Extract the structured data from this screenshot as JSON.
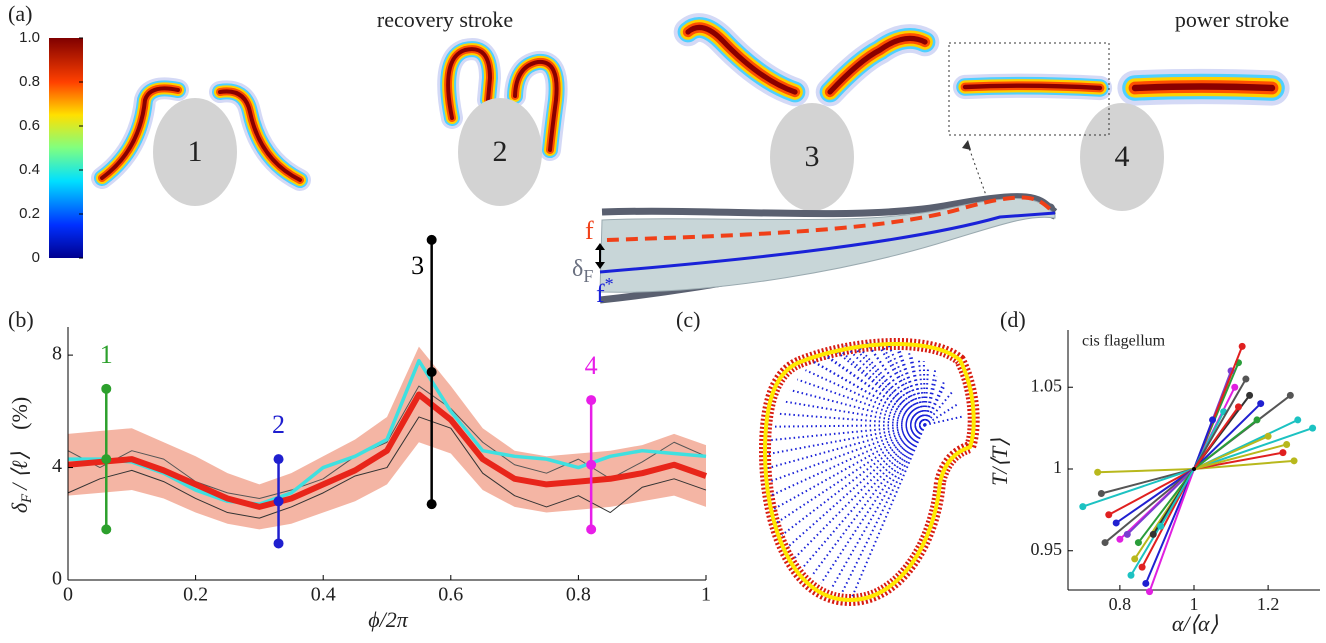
{
  "panels": {
    "a": "(a)",
    "b": "(b)",
    "c": "(c)",
    "d": "(d)"
  },
  "panel_a": {
    "titles": [
      "recovery stroke",
      "power stroke"
    ],
    "cells": [
      "1",
      "2",
      "3",
      "4"
    ],
    "inset": {
      "f": "f",
      "delta": "δ",
      "delta_sub": "F",
      "f_star": "f",
      "star": "*"
    },
    "colorbar": {
      "ylim": [
        0,
        1
      ],
      "yticks": [
        0,
        0.2,
        0.4,
        0.6,
        0.8,
        {
          "value": 1,
          "label": "1.0"
        }
      ]
    }
  },
  "chart_data": [
    {
      "type": "line",
      "xlabel": "ϕ/2π",
      "ylabel": "δ",
      "ylabel_sub": "F",
      "ylabel_rest": "/ ⟨ℓ⟩",
      "ylabel_unit": "(%)",
      "xlim": [
        0,
        1
      ],
      "ylim": [
        0,
        9
      ],
      "xticks": [
        0,
        0.2,
        0.4,
        0.6,
        0.8,
        1
      ],
      "yticks": [
        0,
        4,
        8
      ],
      "x": [
        0,
        0.05,
        0.1,
        0.15,
        0.2,
        0.25,
        0.3,
        0.35,
        0.4,
        0.45,
        0.5,
        0.55,
        0.6,
        0.65,
        0.7,
        0.75,
        0.8,
        0.85,
        0.9,
        0.95,
        1
      ],
      "series": [
        {
          "color": "#f2a894",
          "lower": [
            3.0,
            3.1,
            3.2,
            2.9,
            2.4,
            2.0,
            1.8,
            2.0,
            2.4,
            2.8,
            3.4,
            4.9,
            4.5,
            3.2,
            2.6,
            2.4,
            2.5,
            2.6,
            2.8,
            3.0,
            2.6
          ],
          "upper": [
            5.2,
            5.3,
            5.4,
            4.9,
            4.4,
            3.8,
            3.4,
            3.8,
            4.4,
            5.0,
            5.8,
            8.3,
            6.9,
            5.4,
            4.6,
            4.4,
            4.5,
            4.6,
            4.8,
            5.2,
            4.8
          ]
        },
        {
          "color": "#333333",
          "values": [
            3.1,
            3.6,
            3.9,
            3.5,
            2.9,
            2.4,
            2.2,
            2.6,
            3.1,
            3.7,
            4.0,
            5.8,
            5.4,
            3.8,
            3.0,
            2.6,
            3.0,
            2.4,
            3.3,
            3.6,
            3.2
          ]
        },
        {
          "color": "#555555",
          "values": [
            4.6,
            4.0,
            4.6,
            4.3,
            3.5,
            3.1,
            2.9,
            3.2,
            3.6,
            4.4,
            4.9,
            6.9,
            6.1,
            4.9,
            4.1,
            3.8,
            4.3,
            3.6,
            4.2,
            4.9,
            4.4
          ]
        },
        {
          "color": "#3fe0e0",
          "values": [
            4.3,
            4.3,
            4.2,
            3.8,
            3.2,
            2.8,
            2.7,
            3.1,
            4.0,
            4.4,
            5.0,
            7.8,
            6.0,
            4.6,
            4.4,
            4.3,
            4.0,
            4.4,
            4.6,
            4.5,
            4.4
          ]
        },
        {
          "color": "#e8251a",
          "values": [
            4.1,
            4.2,
            4.3,
            3.9,
            3.4,
            2.9,
            2.6,
            2.9,
            3.4,
            3.9,
            4.6,
            6.6,
            5.7,
            4.3,
            3.6,
            3.4,
            3.5,
            3.6,
            3.8,
            4.1,
            3.7
          ]
        }
      ],
      "markers": {
        "labels": [
          "1",
          "2",
          "3",
          "4"
        ],
        "x": [
          0.06,
          0.33,
          0.57,
          0.82
        ],
        "values": [
          4.3,
          2.8,
          7.4,
          4.1
        ],
        "errors": [
          2.5,
          1.5,
          4.7,
          2.3
        ],
        "colors": [
          "#2ca02c",
          "#1f1fcf",
          "#000000",
          "#e81ee8"
        ]
      }
    },
    {
      "type": "scatter",
      "title": "cis flagellum",
      "xlabel": "α/⟨α⟩",
      "ylabel": "T/⟨T⟩",
      "xlim": [
        0.66,
        1.34
      ],
      "ylim": [
        0.926,
        1.085
      ],
      "xticks": [
        0.8,
        1,
        1.2
      ],
      "yticks": [
        0.95,
        1,
        1.05
      ],
      "center": {
        "x": 1,
        "y": 1
      },
      "x": [
        1.12,
        1.1,
        1.13,
        1.26,
        1.28,
        1.32,
        1.27,
        1.24,
        1.2,
        1.18,
        1.15,
        1.11,
        1.05,
        1.08,
        1.25,
        1.14,
        1.17,
        1.12,
        0.74,
        0.75,
        0.7,
        0.77,
        0.79,
        0.76,
        0.8,
        0.82,
        0.84,
        0.86,
        0.83,
        0.87,
        0.88,
        0.85,
        0.89,
        0.91
      ],
      "values": [
        1.065,
        1.06,
        1.075,
        1.045,
        1.03,
        1.025,
        1.005,
        1.01,
        1.02,
        1.04,
        1.045,
        1.05,
        1.03,
        1.035,
        1.015,
        1.055,
        1.03,
        1.038,
        0.998,
        0.985,
        0.977,
        0.972,
        0.967,
        0.955,
        0.957,
        0.96,
        0.945,
        0.94,
        0.935,
        0.93,
        0.925,
        0.955,
        0.96,
        0.965
      ],
      "colors": [
        "#2a9d3a",
        "#7a3fd0",
        "#e02020",
        "#555555",
        "#1cc2c2",
        "#1cc2c2",
        "#b8b81c",
        "#e02020",
        "#b8b81c",
        "#2020d0",
        "#333333",
        "#e020e0",
        "#2020d0",
        "#1cc2c2",
        "#b8b81c",
        "#555555",
        "#2a9d3a",
        "#e02020",
        "#b8b81c",
        "#555555",
        "#1cc2c2",
        "#e02020",
        "#2020d0",
        "#555555",
        "#e020e0",
        "#7a3fd0",
        "#b8b81c",
        "#e02020",
        "#1cc2c2",
        "#2020d0",
        "#e020e0",
        "#2a9d3a",
        "#333333",
        "#1cc2c2"
      ]
    }
  ]
}
